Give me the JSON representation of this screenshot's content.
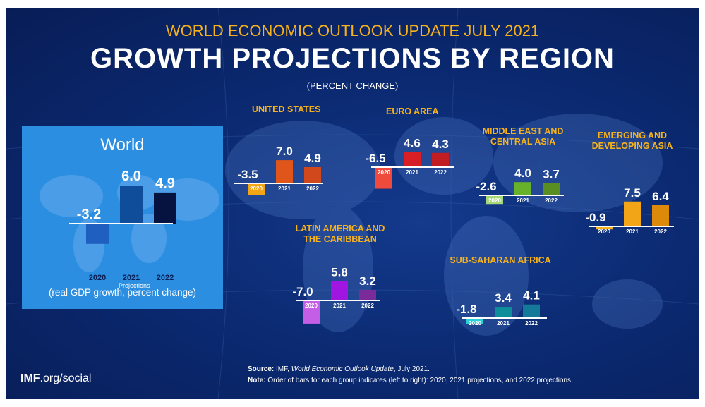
{
  "header": {
    "subtitle": "WORLD ECONOMIC OUTLOOK UPDATE JULY 2021",
    "title": "GROWTH PROJECTIONS BY REGION",
    "units": "(PERCENT CHANGE)"
  },
  "colors": {
    "background": "#0b2a72",
    "accent": "#f6b21b",
    "world_panel": "#2c8ee0"
  },
  "icons": [
    "world-map-icon"
  ],
  "world_panel": {
    "title": "World",
    "projections_label": "Projections",
    "caption": "(real GDP growth, percent change)"
  },
  "footer": {
    "credit_bold": "IMF",
    "credit_rest": ".org/social",
    "source_label": "Source:",
    "source_text": " IMF, ",
    "source_italic": "World Economic Outlook Update",
    "source_tail": ", July 2021.",
    "note_label": "Note:",
    "note_text": " Order of bars for each group indicates (left to right): 2020, 2021 projections, and 2022 projections."
  },
  "chart_data": [
    {
      "type": "bar",
      "title": "World",
      "categories": [
        "2020",
        "2021",
        "2022"
      ],
      "values": [
        -3.2,
        6.0,
        4.9
      ],
      "value_labels": [
        "-3.2",
        "6.0",
        "4.9"
      ],
      "colors": [
        "#1e5fbf",
        "#0f4c9a",
        "#06123f"
      ]
    },
    {
      "type": "bar",
      "title": "UNITED STATES",
      "categories": [
        "2020",
        "2021",
        "2022"
      ],
      "values": [
        -3.5,
        7.0,
        4.9
      ],
      "value_labels": [
        "-3.5",
        "7.0",
        "4.9"
      ],
      "colors": [
        "#f2a516",
        "#e0551a",
        "#d0481b"
      ]
    },
    {
      "type": "bar",
      "title": "EURO AREA",
      "categories": [
        "2020",
        "2021",
        "2022"
      ],
      "values": [
        -6.5,
        4.6,
        4.3
      ],
      "value_labels": [
        "-6.5",
        "4.6",
        "4.3"
      ],
      "colors": [
        "#ef4a3c",
        "#d91f26",
        "#c21d22"
      ]
    },
    {
      "type": "bar",
      "title": "MIDDLE EAST AND CENTRAL ASIA",
      "categories": [
        "2020",
        "2021",
        "2022"
      ],
      "values": [
        -2.6,
        4.0,
        3.7
      ],
      "value_labels": [
        "-2.6",
        "4.0",
        "3.7"
      ],
      "colors": [
        "#a6d87a",
        "#67b22a",
        "#588e22"
      ]
    },
    {
      "type": "bar",
      "title": "EMERGING AND DEVELOPING ASIA",
      "categories": [
        "2020",
        "2021",
        "2022"
      ],
      "values": [
        -0.9,
        7.5,
        6.4
      ],
      "value_labels": [
        "-0.9",
        "7.5",
        "6.4"
      ],
      "colors": [
        "#f6b21b",
        "#f2a516",
        "#dd8a0a"
      ]
    },
    {
      "type": "bar",
      "title": "LATIN AMERICA AND THE CARIBBEAN",
      "categories": [
        "2020",
        "2021",
        "2022"
      ],
      "values": [
        -7.0,
        5.8,
        3.2
      ],
      "value_labels": [
        "-7.0",
        "5.8",
        "3.2"
      ],
      "colors": [
        "#c45ee6",
        "#a016e0",
        "#7a2a99"
      ]
    },
    {
      "type": "bar",
      "title": "SUB-SAHARAN AFRICA",
      "categories": [
        "2020",
        "2021",
        "2022"
      ],
      "values": [
        -1.8,
        3.4,
        4.1
      ],
      "value_labels": [
        "-1.8",
        "3.4",
        "4.1"
      ],
      "colors": [
        "#2ad0d8",
        "#0d8e9a",
        "#157a9a"
      ]
    }
  ]
}
